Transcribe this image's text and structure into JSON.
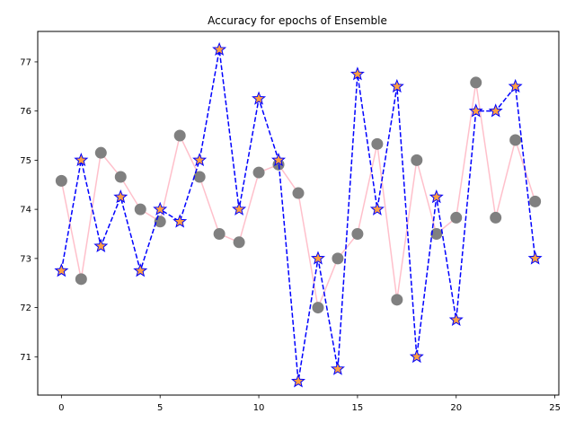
{
  "chart_data": {
    "type": "line",
    "title": "Accuracy for epochs of Ensemble",
    "xlabel": "",
    "ylabel": "",
    "xlim": [
      -1.2,
      25.2
    ],
    "ylim": [
      70.22,
      77.62
    ],
    "xticks": [
      0,
      5,
      10,
      15,
      20,
      25
    ],
    "yticks": [
      71,
      72,
      73,
      74,
      75,
      76,
      77
    ],
    "x": [
      0,
      1,
      2,
      3,
      4,
      5,
      6,
      7,
      8,
      9,
      10,
      11,
      12,
      13,
      14,
      15,
      16,
      17,
      18,
      19,
      20,
      21,
      22,
      23,
      24
    ],
    "series": [
      {
        "style": "solid-line-circle-markers",
        "line_color": "#ffc0cb",
        "marker_color": "#808080",
        "values": [
          74.58,
          72.58,
          75.15,
          74.66,
          74.0,
          73.75,
          75.5,
          74.66,
          73.5,
          73.33,
          74.75,
          74.91,
          74.33,
          72.0,
          73.0,
          73.5,
          75.33,
          72.16,
          75.0,
          73.5,
          73.83,
          76.58,
          73.83,
          75.41,
          74.16
        ]
      },
      {
        "style": "dashed-line-star-markers",
        "line_color": "#0000ff",
        "marker_color": "#ffa040",
        "values": [
          72.75,
          75.0,
          73.25,
          74.25,
          72.75,
          74.0,
          73.75,
          75.0,
          77.25,
          74.0,
          76.25,
          75.0,
          70.5,
          73.0,
          70.75,
          76.75,
          74.0,
          76.5,
          71.0,
          74.25,
          71.75,
          76.0,
          76.0,
          76.5,
          73.0
        ]
      }
    ]
  }
}
